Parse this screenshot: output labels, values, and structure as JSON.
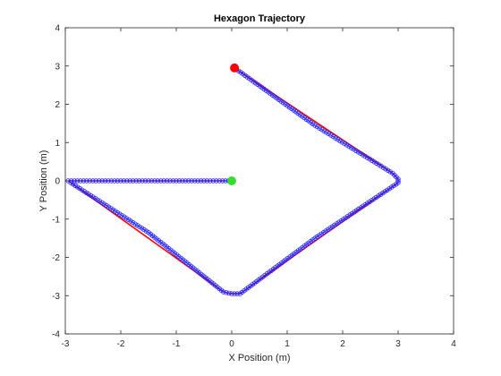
{
  "chart_data": {
    "type": "line",
    "title": "Hexagon Trajectory",
    "xlabel": "X Position (m)",
    "ylabel": "Y Position (m)",
    "xlim": [
      -3,
      4
    ],
    "ylim": [
      -4,
      4
    ],
    "xticks": [
      -3,
      -2,
      -1,
      0,
      1,
      2,
      3,
      4
    ],
    "yticks": [
      -4,
      -3,
      -2,
      -1,
      0,
      1,
      2,
      3,
      4
    ],
    "grid": false,
    "legend": "none",
    "series": [
      {
        "role": "reference",
        "color": "#ff0000",
        "x": [
          0.05,
          2.9,
          3.0,
          3.0,
          0.15,
          0.0,
          -0.15,
          -2.9,
          -2.95,
          0.0
        ],
        "y": [
          2.95,
          0.2,
          0.05,
          -0.05,
          -2.95,
          -2.95,
          -2.9,
          -0.05,
          0.0,
          0.0
        ]
      },
      {
        "role": "trajectory",
        "color": "#2222ff",
        "x": [
          0.0,
          -1.5,
          -2.95,
          -2.9,
          -1.5,
          -0.15,
          0.0,
          0.15,
          1.5,
          3.0,
          3.0,
          2.9,
          1.5,
          0.05
        ],
        "y": [
          0.0,
          0.0,
          0.0,
          -0.05,
          -1.35,
          -2.9,
          -2.95,
          -2.95,
          -1.5,
          -0.05,
          0.05,
          0.2,
          1.45,
          2.95
        ]
      }
    ],
    "start_marker": {
      "x": 0.0,
      "y": 0.0,
      "color": "#33dd33"
    },
    "end_marker": {
      "x": 0.05,
      "y": 2.95,
      "color": "#ff0000"
    }
  }
}
